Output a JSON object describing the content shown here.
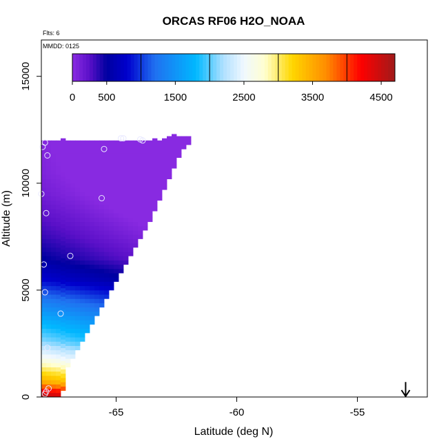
{
  "chart_data": {
    "type": "heatmap",
    "title": "ORCAS RF06 H2O_NOAA",
    "xlabel": "Latitude (deg N)",
    "ylabel": "Altitude (m)",
    "xlim": [
      -68.1,
      -52.1
    ],
    "ylim": [
      0,
      16700
    ],
    "x_ticks": [
      -65,
      -60,
      -55
    ],
    "x_tick_labels": [
      "-65",
      "-60",
      "-55"
    ],
    "y_ticks": [
      0,
      5000,
      10000,
      15000
    ],
    "y_tick_labels": [
      "0",
      "5000",
      "10000",
      "15000"
    ],
    "grid": false,
    "annotations": {
      "flights": "Flts: 6",
      "date": "MMDD: 0125"
    },
    "colorbar": {
      "range": [
        0,
        4700
      ],
      "tick_values": [
        0,
        500,
        1500,
        2500,
        3500,
        4500
      ],
      "tick_labels": [
        "0",
        "500",
        "1500",
        "2500",
        "3500",
        "4500"
      ],
      "divisions": [
        1000,
        2000,
        3000,
        4000
      ],
      "colors": [
        {
          "v": 0,
          "c": "#8a2be2"
        },
        {
          "v": 250,
          "c": "#5a10c8"
        },
        {
          "v": 500,
          "c": "#0000a0"
        },
        {
          "v": 800,
          "c": "#0000cd"
        },
        {
          "v": 1200,
          "c": "#2070f0"
        },
        {
          "v": 1800,
          "c": "#00b8ff"
        },
        {
          "v": 2200,
          "c": "#b0e0ff"
        },
        {
          "v": 2500,
          "c": "#f0f8ff"
        },
        {
          "v": 2800,
          "c": "#ffffd0"
        },
        {
          "v": 3200,
          "c": "#ffd700"
        },
        {
          "v": 3700,
          "c": "#ff8c00"
        },
        {
          "v": 4200,
          "c": "#ff0000"
        },
        {
          "v": 4700,
          "c": "#a01a1a"
        }
      ]
    },
    "cells": {
      "lat_step": 0.2,
      "alt_step": 200,
      "lat_start": -68.1,
      "columns": [
        {
          "alt_min": 0,
          "alt_max": 12000
        },
        {
          "alt_min": 0,
          "alt_max": 12000
        },
        {
          "alt_min": 0,
          "alt_max": 12000
        },
        {
          "alt_min": 0,
          "alt_max": 12000
        },
        {
          "alt_min": 300,
          "alt_max": 12000
        },
        {
          "alt_min": 1400,
          "alt_max": 12000
        },
        {
          "alt_min": 1800,
          "alt_max": 12000
        },
        {
          "alt_min": 2200,
          "alt_max": 12000
        },
        {
          "alt_min": 2600,
          "alt_max": 12000
        },
        {
          "alt_min": 3000,
          "alt_max": 12000
        },
        {
          "alt_min": 3400,
          "alt_max": 12000
        },
        {
          "alt_min": 3800,
          "alt_max": 12000
        },
        {
          "alt_min": 4200,
          "alt_max": 12000
        },
        {
          "alt_min": 4600,
          "alt_max": 12000
        },
        {
          "alt_min": 5000,
          "alt_max": 12000
        },
        {
          "alt_min": 5400,
          "alt_max": 12000
        },
        {
          "alt_min": 5800,
          "alt_max": 12000
        },
        {
          "alt_min": 6200,
          "alt_max": 12000
        },
        {
          "alt_min": 6600,
          "alt_max": 12000
        },
        {
          "alt_min": 7000,
          "alt_max": 12000
        },
        {
          "alt_min": 7400,
          "alt_max": 12000
        },
        {
          "alt_min": 7800,
          "alt_max": 12000
        },
        {
          "alt_min": 8200,
          "alt_max": 12000
        },
        {
          "alt_min": 8700,
          "alt_max": 12000
        },
        {
          "alt_min": 9200,
          "alt_max": 12000
        },
        {
          "alt_min": 9700,
          "alt_max": 12000
        },
        {
          "alt_min": 10200,
          "alt_max": 12200
        },
        {
          "alt_min": 10700,
          "alt_max": 12200
        },
        {
          "alt_min": 11200,
          "alt_max": 12200
        },
        {
          "alt_min": 11600,
          "alt_max": 12200
        },
        {
          "alt_min": 11800,
          "alt_max": 12200
        }
      ],
      "vertical_profile": [
        {
          "alt": 0,
          "v": 4600
        },
        {
          "alt": 300,
          "v": 4200
        },
        {
          "alt": 700,
          "v": 3500
        },
        {
          "alt": 1200,
          "v": 3100
        },
        {
          "alt": 1800,
          "v": 2600
        },
        {
          "alt": 2600,
          "v": 2100
        },
        {
          "alt": 3500,
          "v": 1750
        },
        {
          "alt": 4500,
          "v": 1300
        },
        {
          "alt": 5500,
          "v": 800
        },
        {
          "alt": 6500,
          "v": 500
        },
        {
          "alt": 7500,
          "v": 350
        },
        {
          "alt": 8500,
          "v": 230
        },
        {
          "alt": 9500,
          "v": 120
        },
        {
          "alt": 10500,
          "v": 60
        },
        {
          "alt": 12200,
          "v": 20
        }
      ],
      "column_gradient": 12
    },
    "flight_points": [
      {
        "lat": -67.95,
        "alt": 11900
      },
      {
        "lat": -68.05,
        "alt": 11700
      },
      {
        "lat": -67.85,
        "alt": 11300
      },
      {
        "lat": -65.5,
        "alt": 11600
      },
      {
        "lat": -64.8,
        "alt": 12100
      },
      {
        "lat": -64.7,
        "alt": 12100
      },
      {
        "lat": -64.0,
        "alt": 12050
      },
      {
        "lat": -63.9,
        "alt": 12000
      },
      {
        "lat": -68.1,
        "alt": 9500
      },
      {
        "lat": -65.6,
        "alt": 9300
      },
      {
        "lat": -67.9,
        "alt": 8600
      },
      {
        "lat": -66.9,
        "alt": 6600
      },
      {
        "lat": -68.0,
        "alt": 6200
      },
      {
        "lat": -67.95,
        "alt": 4900
      },
      {
        "lat": -67.3,
        "alt": 3900
      },
      {
        "lat": -67.85,
        "alt": 2300
      },
      {
        "lat": -67.8,
        "alt": 400
      },
      {
        "lat": -67.9,
        "alt": 250
      },
      {
        "lat": -67.95,
        "alt": 150
      }
    ],
    "arrow_marker": {
      "lat": -53.0,
      "alt_top": 700,
      "alt_bottom": 0
    }
  }
}
